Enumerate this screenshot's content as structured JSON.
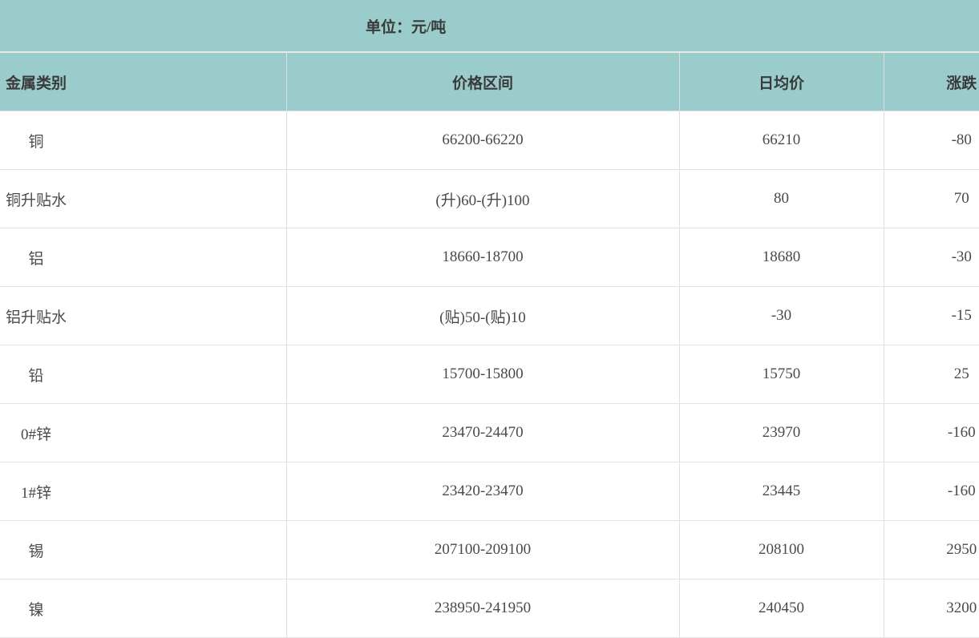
{
  "colors": {
    "band_teal": "#9ACCCB",
    "grid_line": "#DFDFDF",
    "unit_divider": "#E8E8E8",
    "row_divider": "#E3E3E3",
    "header_text": "#3A3A3A",
    "body_text": "#4A4A4A",
    "background": "#FFFFFF"
  },
  "chart_data": {
    "type": "table",
    "title": "单位：元/吨",
    "columns": [
      "金属类别",
      "价格区间",
      "日均价",
      "涨跌"
    ],
    "rows": [
      [
        "铜",
        "66200-66220",
        66210,
        -80
      ],
      [
        "铜升贴水",
        "(升)60-(升)100",
        80,
        70
      ],
      [
        "铝",
        "18660-18700",
        18680,
        -30
      ],
      [
        "铝升贴水",
        "(贴)50-(贴)10",
        -30,
        -15
      ],
      [
        "铅",
        "15700-15800",
        15750,
        25
      ],
      [
        "0#锌",
        "23470-24470",
        23970,
        -160
      ],
      [
        "1#锌",
        "23420-23470",
        23445,
        -160
      ],
      [
        "锡",
        "207100-209100",
        208100,
        2950
      ],
      [
        "镍",
        "238950-241950",
        240450,
        3200
      ]
    ]
  }
}
